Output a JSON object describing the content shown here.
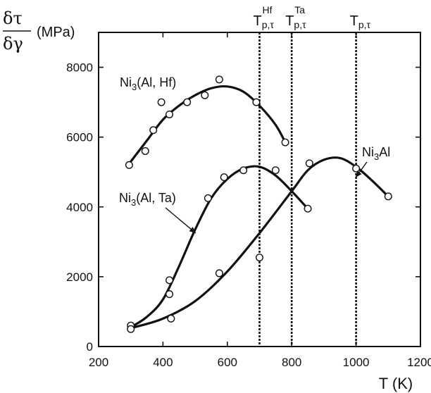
{
  "chart_data": {
    "type": "scatter",
    "xlabel": "T (K)",
    "ylabel": {
      "numerator": "δτ",
      "denominator": "δγ",
      "unit": "(MPa)"
    },
    "xlim": [
      200,
      1200
    ],
    "ylim": [
      0,
      9000
    ],
    "x_ticks": [
      200,
      400,
      600,
      800,
      1000,
      1200
    ],
    "y_ticks": [
      0,
      2000,
      4000,
      6000,
      8000
    ],
    "grid": false,
    "series": [
      {
        "name": "Ni3(Al, Hf)",
        "label": {
          "pre": "Ni",
          "sub": "3",
          "post": "(Al, Hf)"
        },
        "points": [
          {
            "x": 295,
            "y": 5200
          },
          {
            "x": 345,
            "y": 5600
          },
          {
            "x": 370,
            "y": 6200
          },
          {
            "x": 395,
            "y": 7000
          },
          {
            "x": 420,
            "y": 6650
          },
          {
            "x": 475,
            "y": 7000
          },
          {
            "x": 530,
            "y": 7200
          },
          {
            "x": 575,
            "y": 7650
          },
          {
            "x": 690,
            "y": 7000
          },
          {
            "x": 780,
            "y": 5850
          }
        ],
        "curve": [
          {
            "x": 300,
            "y": 5300
          },
          {
            "x": 350,
            "y": 5900
          },
          {
            "x": 400,
            "y": 6500
          },
          {
            "x": 450,
            "y": 6900
          },
          {
            "x": 500,
            "y": 7200
          },
          {
            "x": 550,
            "y": 7400
          },
          {
            "x": 600,
            "y": 7450
          },
          {
            "x": 650,
            "y": 7300
          },
          {
            "x": 700,
            "y": 6900
          },
          {
            "x": 750,
            "y": 6350
          },
          {
            "x": 780,
            "y": 5850
          }
        ]
      },
      {
        "name": "Ni3(Al, Ta)",
        "label": {
          "pre": "Ni",
          "sub": "3",
          "post": "(Al, Ta)"
        },
        "points": [
          {
            "x": 300,
            "y": 600
          },
          {
            "x": 420,
            "y": 1900
          },
          {
            "x": 420,
            "y": 1500
          },
          {
            "x": 540,
            "y": 4250
          },
          {
            "x": 590,
            "y": 4850
          },
          {
            "x": 650,
            "y": 5050
          },
          {
            "x": 750,
            "y": 5050
          },
          {
            "x": 850,
            "y": 3950
          }
        ],
        "curve": [
          {
            "x": 300,
            "y": 550
          },
          {
            "x": 350,
            "y": 850
          },
          {
            "x": 400,
            "y": 1350
          },
          {
            "x": 450,
            "y": 2300
          },
          {
            "x": 500,
            "y": 3350
          },
          {
            "x": 550,
            "y": 4250
          },
          {
            "x": 600,
            "y": 4800
          },
          {
            "x": 650,
            "y": 5100
          },
          {
            "x": 700,
            "y": 5150
          },
          {
            "x": 750,
            "y": 4900
          },
          {
            "x": 800,
            "y": 4450
          },
          {
            "x": 850,
            "y": 3950
          }
        ]
      },
      {
        "name": "Ni3Al",
        "label": {
          "pre": "Ni",
          "sub": "3",
          "post": "Al"
        },
        "points": [
          {
            "x": 300,
            "y": 500
          },
          {
            "x": 425,
            "y": 800
          },
          {
            "x": 575,
            "y": 2100
          },
          {
            "x": 700,
            "y": 2550
          },
          {
            "x": 855,
            "y": 5250
          },
          {
            "x": 1000,
            "y": 5100
          },
          {
            "x": 1100,
            "y": 4300
          }
        ],
        "curve": [
          {
            "x": 310,
            "y": 550
          },
          {
            "x": 400,
            "y": 800
          },
          {
            "x": 500,
            "y": 1300
          },
          {
            "x": 600,
            "y": 2150
          },
          {
            "x": 700,
            "y": 3250
          },
          {
            "x": 800,
            "y": 4450
          },
          {
            "x": 850,
            "y": 5050
          },
          {
            "x": 900,
            "y": 5350
          },
          {
            "x": 950,
            "y": 5400
          },
          {
            "x": 1000,
            "y": 5150
          },
          {
            "x": 1050,
            "y": 4750
          },
          {
            "x": 1100,
            "y": 4300
          }
        ]
      }
    ],
    "vertical_markers": [
      {
        "x": 700,
        "label": {
          "main": "T",
          "sub": "p,τ",
          "sup": "Hf"
        }
      },
      {
        "x": 800,
        "label": {
          "main": "T",
          "sub": "p,τ",
          "sup": "Ta"
        }
      },
      {
        "x": 1000,
        "label": {
          "main": "T",
          "sub": "p,τ",
          "sup": ""
        }
      }
    ]
  }
}
